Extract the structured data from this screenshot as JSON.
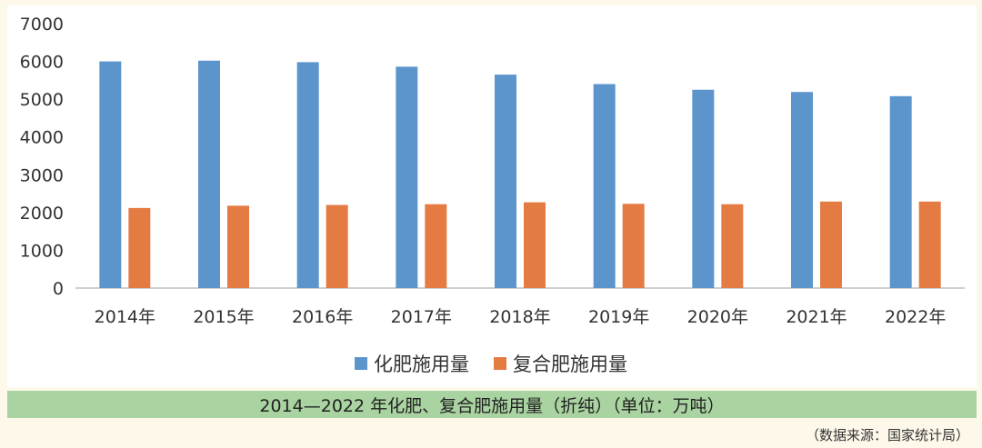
{
  "chart_data": {
    "type": "bar",
    "categories": [
      "2014年",
      "2015年",
      "2016年",
      "2017年",
      "2018年",
      "2019年",
      "2020年",
      "2021年",
      "2022年"
    ],
    "series": [
      {
        "name": "化肥施用量",
        "color": "#5b95cc",
        "values": [
          6000,
          6020,
          5980,
          5860,
          5650,
          5400,
          5250,
          5190,
          5080
        ]
      },
      {
        "name": "复合肥施用量",
        "color": "#e37b43",
        "values": [
          2120,
          2180,
          2200,
          2220,
          2270,
          2230,
          2220,
          2290,
          2290
        ]
      }
    ],
    "yticks": [
      "0",
      "1000",
      "2000",
      "3000",
      "4000",
      "5000",
      "6000",
      "7000"
    ],
    "ylim": [
      0,
      7000
    ],
    "grid": false,
    "legend_position": "bottom-center"
  },
  "caption": "2014—2022 年化肥、复合肥施用量（折纯）（单位：万吨）",
  "source_note": "（数据来源：国家统计局）"
}
